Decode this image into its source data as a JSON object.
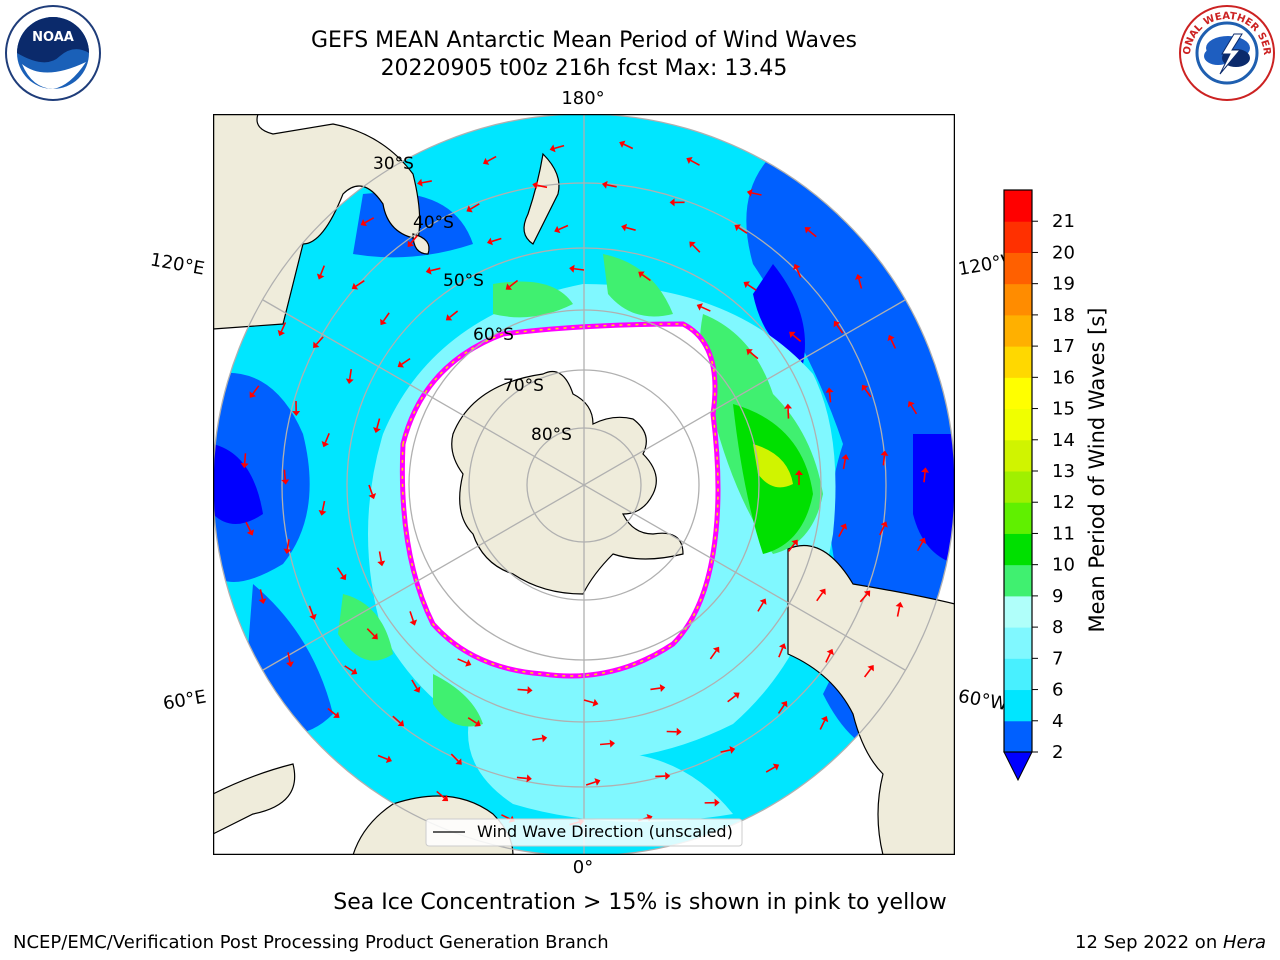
{
  "title": {
    "line1": "GEFS MEAN Antarctic Mean Period of Wind Waves",
    "line2": "20220905 t00z 216h fcst   Max: 13.45"
  },
  "map": {
    "projection": "south-polar stereographic",
    "lon_labels": [
      "180°",
      "120°E",
      "120°W",
      "60°E",
      "60°W",
      "0°"
    ],
    "lat_labels": [
      "30°S",
      "40°S",
      "50°S",
      "60°S",
      "70°S",
      "80°S"
    ],
    "legend_label": "Wind Wave Direction (unscaled)",
    "arrow_color": "#ff0000",
    "land_color": "#efecdb",
    "ice_edge_colors": [
      "#ff00ff",
      "#ffb300",
      "#ffe000"
    ]
  },
  "colorbar": {
    "label": "Mean Period of Wind Waves [s]",
    "ticks": [
      "2",
      "4",
      "6",
      "7",
      "8",
      "9",
      "10",
      "11",
      "12",
      "13",
      "14",
      "15",
      "16",
      "17",
      "18",
      "19",
      "20",
      "21"
    ],
    "colors": [
      "#0060ff",
      "#00e6ff",
      "#48f0ff",
      "#80f8ff",
      "#b0fffa",
      "#40f070",
      "#00e000",
      "#60f000",
      "#a0f000",
      "#d0f400",
      "#f0ff00",
      "#ffff00",
      "#ffd800",
      "#ffb000",
      "#ff8c00",
      "#ff6000",
      "#ff3000",
      "#ff0000"
    ],
    "under_color": "#0000ff"
  },
  "notes": {
    "sea_ice": "Sea Ice Concentration > 15% is shown in pink to yellow"
  },
  "footer": {
    "left": "NCEP/EMC/Verification Post Processing Product Generation Branch",
    "right_date": "12 Sep 2022 on ",
    "right_machine": "Hera"
  },
  "logos": {
    "noaa_text": "NOAA",
    "nws_text": "NATIONAL WEATHER SERVICE"
  }
}
